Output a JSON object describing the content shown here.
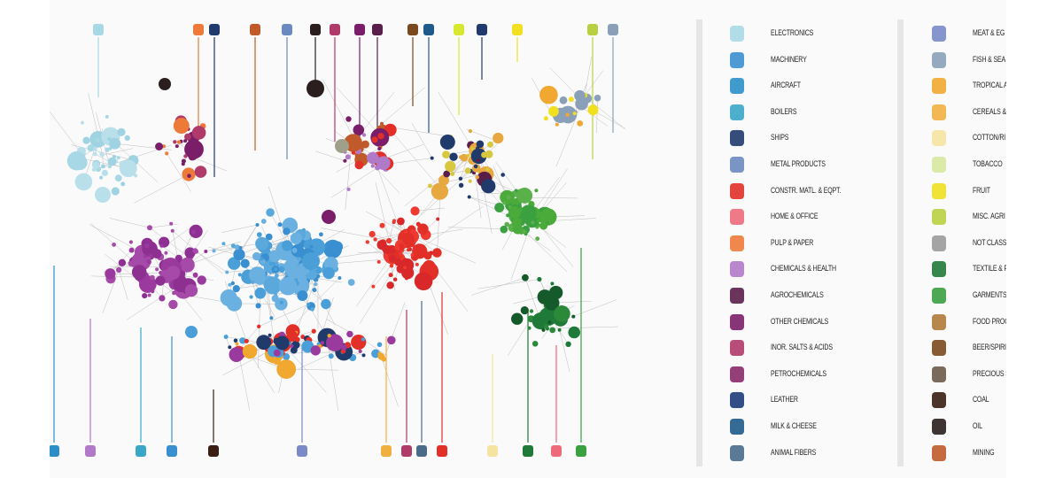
{
  "legend_left": [
    {
      "label": "ELECTRONICS",
      "icon": "monitor-icon",
      "color": "#a8d8e6"
    },
    {
      "label": "MACHINERY",
      "icon": "gears-icon",
      "color": "#3a8fd0"
    },
    {
      "label": "AIRCRAFT",
      "icon": "airplane-icon",
      "color": "#2a8fc8"
    },
    {
      "label": "BOILERS",
      "icon": "boiler-icon",
      "color": "#3aa6c8"
    },
    {
      "label": "SHIPS",
      "icon": "anchor-icon",
      "color": "#1f3a6b"
    },
    {
      "label": "METAL PRODUCTS",
      "icon": "metal-products-icon",
      "color": "#6a8ac0"
    },
    {
      "label": "CONSTR. MATL. & EQPT.",
      "icon": "construction-icon",
      "color": "#e23028"
    },
    {
      "label": "HOME & OFFICE",
      "icon": "home-office-icon",
      "color": "#ee6a7a"
    },
    {
      "label": "PULP & PAPER",
      "icon": "pulp-paper-icon",
      "color": "#ee7a3a"
    },
    {
      "label": "CHEMICALS & HEALTH",
      "icon": "capsule-icon",
      "color": "#b07ac8"
    },
    {
      "label": "AGROCHEMICALS",
      "icon": "agrochemicals-icon",
      "color": "#5a1e4a"
    },
    {
      "label": "OTHER CHEMICALS",
      "icon": "other-chemicals-icon",
      "color": "#7a1e6a"
    },
    {
      "label": "INOR. SALTS & ACIDS",
      "icon": "salts-acids-icon",
      "color": "#b03a6a"
    },
    {
      "label": "PETROCHEMICALS",
      "icon": "petrochemicals-icon",
      "color": "#8a2a6a"
    },
    {
      "label": "LEATHER",
      "icon": "leather-icon",
      "color": "#1f3a7a"
    },
    {
      "label": "MILK & CHEESE",
      "icon": "milk-cheese-icon",
      "color": "#1f5a8a"
    },
    {
      "label": "ANIMAL FIBERS",
      "icon": "animal-fibers-icon",
      "color": "#4a6a8a"
    }
  ],
  "legend_right": [
    {
      "label": "MEAT & EG",
      "icon": "meat-eggs-icon",
      "color": "#7a8ac8"
    },
    {
      "label": "FISH & SEA",
      "icon": "fish-icon",
      "color": "#8aa0b8"
    },
    {
      "label": "TROPICAL A",
      "icon": "tropical-icon",
      "color": "#f0a830"
    },
    {
      "label": "CEREALS &",
      "icon": "cereals-icon",
      "color": "#f0b040"
    },
    {
      "label": "COTTON/RI",
      "icon": "cotton-icon",
      "color": "#f5e3a0"
    },
    {
      "label": "TOBACCO",
      "icon": "tobacco-icon",
      "color": "#d8e8a0"
    },
    {
      "label": "FRUIT",
      "icon": "fruit-icon",
      "color": "#f0e020"
    },
    {
      "label": "MISC. AGRI",
      "icon": "misc-agri-icon",
      "color": "#b8d040"
    },
    {
      "label": "NOT CLASSI",
      "icon": "not-classified-icon",
      "color": "#9a9a9a"
    },
    {
      "label": "TEXTILE & F",
      "icon": "textile-icon",
      "color": "#1f7a3a"
    },
    {
      "label": "GARMENTS",
      "icon": "garments-icon",
      "color": "#3aa040"
    },
    {
      "label": "FOOD PROC",
      "icon": "food-processing-icon",
      "color": "#b07a3a"
    },
    {
      "label": "BEER/SPIRI",
      "icon": "beer-spirits-icon",
      "color": "#7a4a1e"
    },
    {
      "label": "PRECIOUS S",
      "icon": "precious-stones-icon",
      "color": "#6a5a4a"
    },
    {
      "label": "COAL",
      "icon": "coal-icon",
      "color": "#3a1e14"
    },
    {
      "label": "OIL",
      "icon": "oil-icon",
      "color": "#2a1e1e"
    },
    {
      "label": "MINING",
      "icon": "mining-icon",
      "color": "#c05a2a"
    }
  ]
}
